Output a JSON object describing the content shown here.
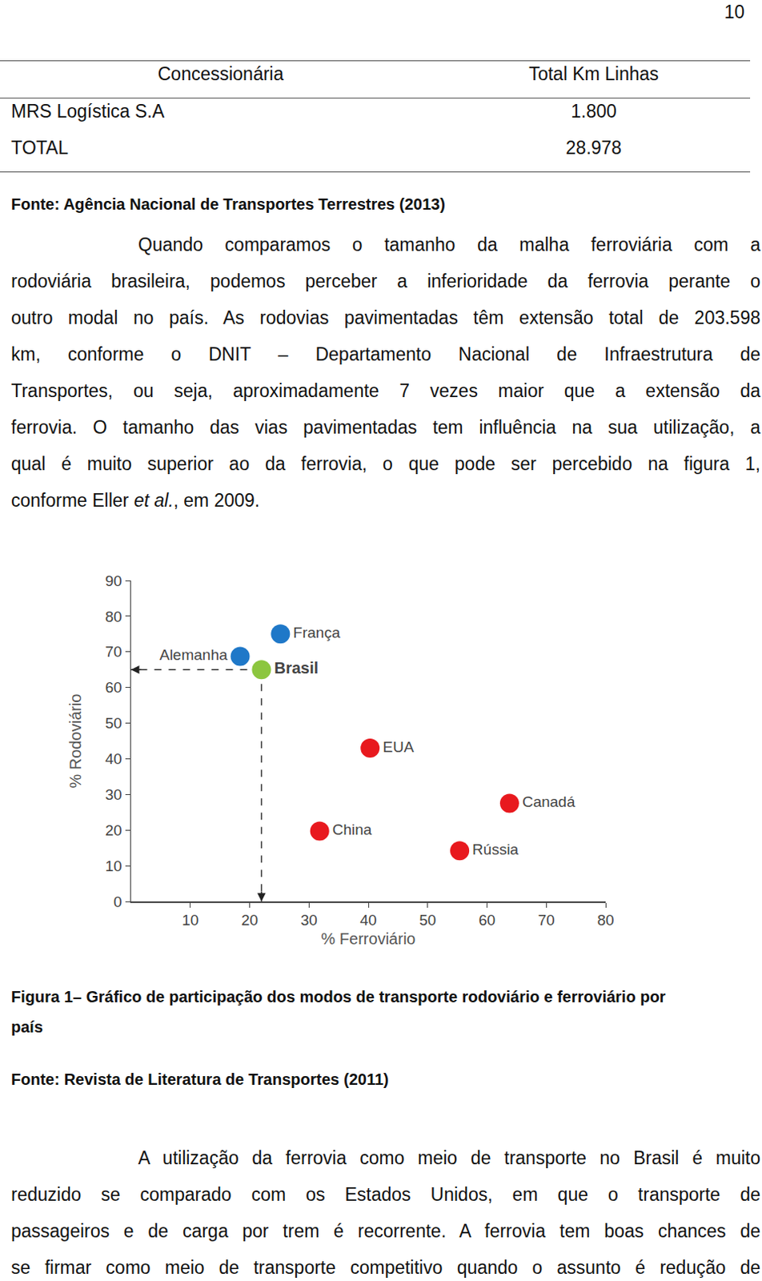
{
  "page_number": "10",
  "table": {
    "header": [
      "Concessionária",
      "Total Km Linhas"
    ],
    "rows": [
      [
        "MRS Logística S.A",
        "1.800"
      ],
      [
        "TOTAL",
        "28.978"
      ]
    ],
    "source": "Fonte: Agência Nacional de Transportes Terrestres (2013)"
  },
  "paragraphs": [
    [
      "Quando comparamos o tamanho da malha ferroviária com a",
      "rodoviária brasileira, podemos perceber a inferioridade da ferrovia perante o",
      "outro modal no país. As rodovias pavimentadas têm extensão total de 203.598",
      "km, conforme o DNIT – Departamento Nacional de Infraestrutura de",
      "Transportes, ou seja, aproximadamente 7 vezes maior que a extensão da",
      "ferrovia. O tamanho das vias pavimentadas tem influência na sua utilização, a",
      "qual é muito superior ao da ferrovia, o que pode ser percebido na figura 1,",
      [
        {
          "text": "conforme Eller "
        },
        {
          "text": "et al.",
          "italic": true
        },
        {
          "text": ", em 2009."
        }
      ]
    ]
  ],
  "chart_data": {
    "type": "scatter",
    "x_label": "% Ferroviário",
    "y_label": "% Rodoviário",
    "xlim": [
      0,
      80
    ],
    "ylim": [
      0,
      90
    ],
    "xticks": [
      10,
      20,
      30,
      40,
      50,
      60,
      70,
      80
    ],
    "yticks": [
      0,
      10,
      20,
      30,
      40,
      50,
      60,
      70,
      80,
      90
    ],
    "grid": false,
    "marker": "circle",
    "series": [
      {
        "name": "Alemanha",
        "color": "#1f78c8",
        "x": [
          18.4
        ],
        "values": [
          68.7
        ]
      },
      {
        "name": "França",
        "color": "#1f78c8",
        "x": [
          25.2
        ],
        "values": [
          75
        ]
      },
      {
        "name": "Brasil",
        "color": "#8cc63f",
        "x": [
          22
        ],
        "values": [
          65
        ],
        "line_style": "dashed"
      },
      {
        "name": "EUA",
        "color": "#e8191e",
        "x": [
          40.3
        ],
        "values": [
          43
        ]
      },
      {
        "name": "Canadá",
        "color": "#e8191e",
        "x": [
          63.8
        ],
        "values": [
          27.5
        ]
      },
      {
        "name": "China",
        "color": "#e8191e",
        "x": [
          31.8
        ],
        "values": [
          19.7
        ]
      },
      {
        "name": "Rússia",
        "color": "#e8191e",
        "x": [
          55.4
        ],
        "values": [
          14.2
        ]
      }
    ]
  },
  "figure": {
    "caption_lines": [
      "Figura 1– Gráfico de participação dos modos de transporte rodoviário e ferroviário por",
      "país"
    ],
    "source": "Fonte: Revista de Literatura de Transportes (2011)"
  },
  "closing_paragraph": [
    "A utilização da ferrovia como meio de transporte no Brasil é muito",
    "reduzido se comparado com os Estados Unidos, em que o transporte de",
    "passageiros e de carga por trem é recorrente. A ferrovia tem boas chances de",
    "se firmar como meio de transporte competitivo quando o assunto é redução de"
  ]
}
